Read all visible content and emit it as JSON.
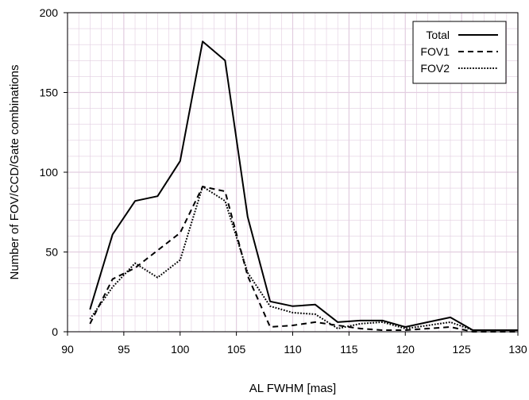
{
  "chart_data": {
    "type": "line",
    "title": "",
    "xlabel": "AL FWHM [mas]",
    "ylabel": "Number of FOV/CCD/Gate combinations",
    "xlim": [
      90,
      130
    ],
    "ylim": [
      0,
      200
    ],
    "xticks": [
      90,
      95,
      100,
      105,
      110,
      115,
      120,
      125,
      130
    ],
    "yticks": [
      0,
      50,
      100,
      150,
      200
    ],
    "x_minor_step": 1,
    "y_minor_step": 10,
    "grid": true,
    "legend_position": "top-right",
    "series": [
      {
        "name": "Total",
        "style": "solid",
        "x": [
          92,
          94,
          96,
          98,
          100,
          102,
          104,
          106,
          108,
          110,
          112,
          114,
          116,
          118,
          120,
          122,
          124,
          126,
          128,
          130
        ],
        "y": [
          14,
          61,
          82,
          85,
          107,
          182,
          170,
          72,
          19,
          16,
          17,
          6,
          7,
          7,
          3,
          6,
          9,
          1,
          1,
          1
        ]
      },
      {
        "name": "FOV1",
        "style": "dashed",
        "x": [
          92,
          94,
          96,
          98,
          100,
          102,
          104,
          106,
          108,
          110,
          112,
          114,
          116,
          118,
          120,
          122,
          124,
          126,
          128,
          130
        ],
        "y": [
          5,
          33,
          40,
          51,
          62,
          91,
          88,
          35,
          3,
          4,
          6,
          4,
          2,
          1,
          1,
          2,
          3,
          0,
          0,
          0
        ]
      },
      {
        "name": "FOV2",
        "style": "dotted",
        "x": [
          92,
          94,
          96,
          98,
          100,
          102,
          104,
          106,
          108,
          110,
          112,
          114,
          116,
          118,
          120,
          122,
          124,
          126,
          128,
          130
        ],
        "y": [
          8,
          28,
          43,
          34,
          45,
          91,
          82,
          37,
          16,
          12,
          11,
          2,
          5,
          6,
          2,
          4,
          6,
          1,
          1,
          1
        ]
      }
    ],
    "colors": {
      "line": "#000000",
      "grid": "#e2cde0",
      "axis": "#000000"
    }
  }
}
